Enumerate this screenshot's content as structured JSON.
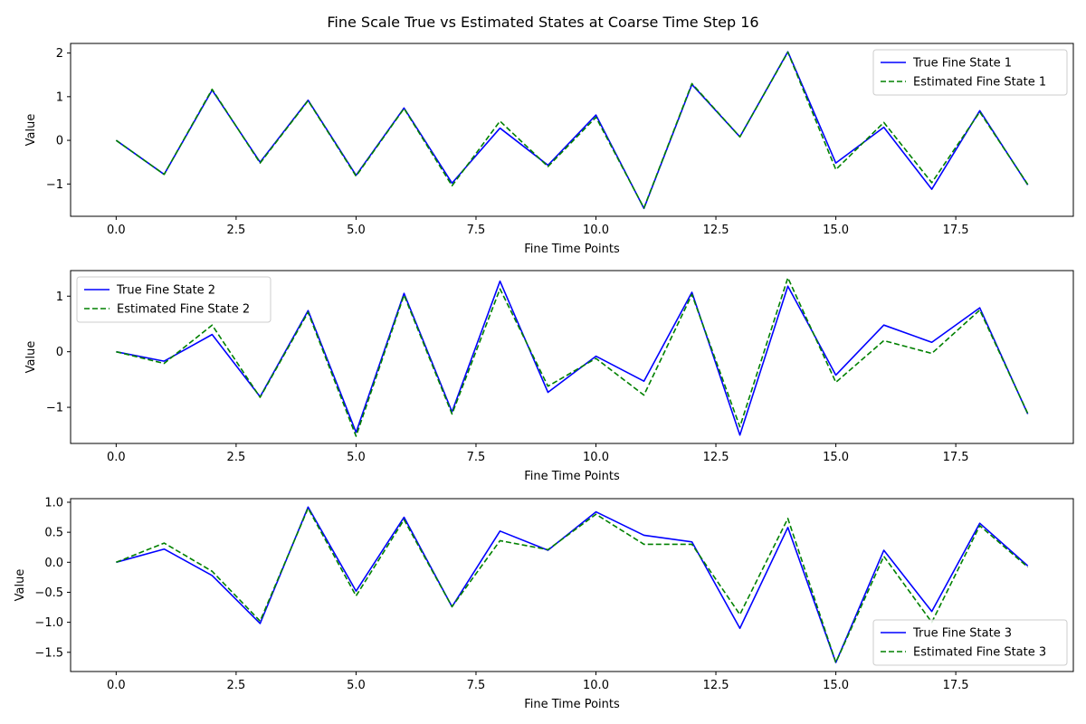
{
  "figure_title": "Fine Scale True vs Estimated States at Coarse Time Step 16",
  "colors": {
    "true": "#0000ff",
    "estimated": "#008000",
    "axis": "#000000",
    "legend_border": "#cccccc"
  },
  "chart_data": [
    {
      "type": "line",
      "xlabel": "Fine Time Points",
      "ylabel": "Value",
      "xlim": [
        -0.95,
        19.95
      ],
      "ylim": [
        -1.74,
        2.22
      ],
      "xticks": [
        0.0,
        2.5,
        5.0,
        7.5,
        10.0,
        12.5,
        15.0,
        17.5
      ],
      "xtick_labels": [
        "0.0",
        "2.5",
        "5.0",
        "7.5",
        "10.0",
        "12.5",
        "15.0",
        "17.5"
      ],
      "yticks": [
        -1,
        0,
        1,
        2
      ],
      "ytick_labels": [
        "−1",
        "0",
        "1",
        "2"
      ],
      "legend_position": "upper right",
      "x": [
        0,
        1,
        2,
        3,
        4,
        5,
        6,
        7,
        8,
        9,
        10,
        11,
        12,
        13,
        14,
        15,
        16,
        17,
        18,
        19
      ],
      "series": [
        {
          "name": "True Fine State 1",
          "style": "solid",
          "values": [
            0.0,
            -0.78,
            1.15,
            -0.5,
            0.92,
            -0.8,
            0.74,
            -0.98,
            0.28,
            -0.57,
            0.58,
            -1.56,
            1.28,
            0.08,
            2.03,
            -0.52,
            0.3,
            -1.12,
            0.68,
            -1.02
          ]
        },
        {
          "name": "Estimated Fine State 1",
          "style": "dashed",
          "values": [
            0.0,
            -0.78,
            1.17,
            -0.52,
            0.91,
            -0.82,
            0.73,
            -1.04,
            0.44,
            -0.6,
            0.53,
            -1.55,
            1.3,
            0.08,
            2.02,
            -0.67,
            0.41,
            -0.97,
            0.65,
            -1.01
          ]
        }
      ]
    },
    {
      "type": "line",
      "xlabel": "Fine Time Points",
      "ylabel": "Value",
      "xlim": [
        -0.95,
        19.95
      ],
      "ylim": [
        -1.65,
        1.46
      ],
      "xticks": [
        0.0,
        2.5,
        5.0,
        7.5,
        10.0,
        12.5,
        15.0,
        17.5
      ],
      "xtick_labels": [
        "0.0",
        "2.5",
        "5.0",
        "7.5",
        "10.0",
        "12.5",
        "15.0",
        "17.5"
      ],
      "yticks": [
        -1,
        0,
        1
      ],
      "ytick_labels": [
        "−1",
        "0",
        "1"
      ],
      "legend_position": "upper left",
      "x": [
        0,
        1,
        2,
        3,
        4,
        5,
        6,
        7,
        8,
        9,
        10,
        11,
        12,
        13,
        14,
        15,
        16,
        17,
        18,
        19
      ],
      "series": [
        {
          "name": "True Fine State 2",
          "style": "solid",
          "values": [
            0.0,
            -0.17,
            0.31,
            -0.81,
            0.74,
            -1.45,
            1.05,
            -1.08,
            1.27,
            -0.73,
            -0.08,
            -0.53,
            1.07,
            -1.5,
            1.18,
            -0.42,
            0.48,
            0.17,
            0.79,
            -1.12
          ]
        },
        {
          "name": "Estimated Fine State 2",
          "style": "dashed",
          "values": [
            0.0,
            -0.21,
            0.48,
            -0.82,
            0.71,
            -1.52,
            1.02,
            -1.12,
            1.13,
            -0.62,
            -0.12,
            -0.78,
            1.03,
            -1.35,
            1.33,
            -0.55,
            0.2,
            -0.03,
            0.75,
            -1.11
          ]
        }
      ]
    },
    {
      "type": "line",
      "xlabel": "Fine Time Points",
      "ylabel": "Value",
      "xlim": [
        -0.95,
        19.95
      ],
      "ylim": [
        -1.82,
        1.06
      ],
      "xticks": [
        0.0,
        2.5,
        5.0,
        7.5,
        10.0,
        12.5,
        15.0,
        17.5
      ],
      "xtick_labels": [
        "0.0",
        "2.5",
        "5.0",
        "7.5",
        "10.0",
        "12.5",
        "15.0",
        "17.5"
      ],
      "yticks": [
        -1.5,
        -1.0,
        -0.5,
        0.0,
        0.5,
        1.0
      ],
      "ytick_labels": [
        "−1.5",
        "−1.0",
        "−0.5",
        "0.0",
        "0.5",
        "1.0"
      ],
      "legend_position": "lower right",
      "x": [
        0,
        1,
        2,
        3,
        4,
        5,
        6,
        7,
        8,
        9,
        10,
        11,
        12,
        13,
        14,
        15,
        16,
        17,
        18,
        19
      ],
      "series": [
        {
          "name": "True Fine State 3",
          "style": "solid",
          "values": [
            0.0,
            0.22,
            -0.22,
            -1.02,
            0.92,
            -0.48,
            0.75,
            -0.74,
            0.52,
            0.2,
            0.84,
            0.45,
            0.34,
            -1.1,
            0.58,
            -1.67,
            0.2,
            -0.82,
            0.65,
            -0.06
          ]
        },
        {
          "name": "Estimated Fine State 3",
          "style": "dashed",
          "values": [
            0.0,
            0.32,
            -0.15,
            -0.98,
            0.9,
            -0.56,
            0.71,
            -0.74,
            0.36,
            0.21,
            0.8,
            0.3,
            0.3,
            -0.87,
            0.73,
            -1.67,
            0.1,
            -1.0,
            0.61,
            -0.08
          ]
        }
      ]
    }
  ]
}
